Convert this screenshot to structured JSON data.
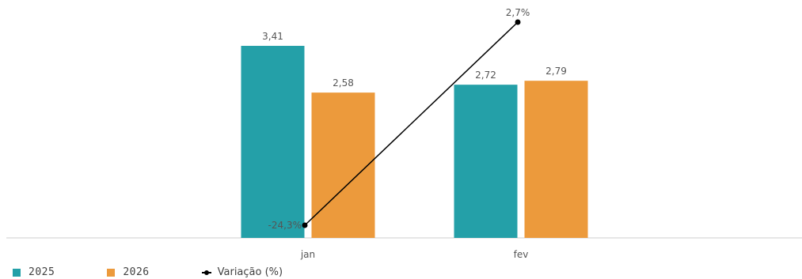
{
  "chart_data": {
    "type": "bar",
    "categories": [
      "jan",
      "fev"
    ],
    "series": [
      {
        "name": "2025",
        "values": [
          3.41,
          2.72
        ],
        "labels": [
          "3,41",
          "2,72"
        ],
        "color": "#24A0A8"
      },
      {
        "name": "2026",
        "values": [
          2.58,
          2.79
        ],
        "labels": [
          "2,58",
          "2,79"
        ],
        "color": "#EC9A3C"
      }
    ],
    "line_series": {
      "name": "Variação (%)",
      "values": [
        -24.3,
        2.7
      ],
      "labels": [
        "-24,3%",
        "2,7%"
      ],
      "color": "#000000",
      "ylim": [
        -24.3,
        2.7
      ]
    },
    "ylim": [
      0,
      3.41
    ],
    "grid": false,
    "legend": "bottom-left",
    "title": "",
    "xlabel": "",
    "ylabel": ""
  }
}
